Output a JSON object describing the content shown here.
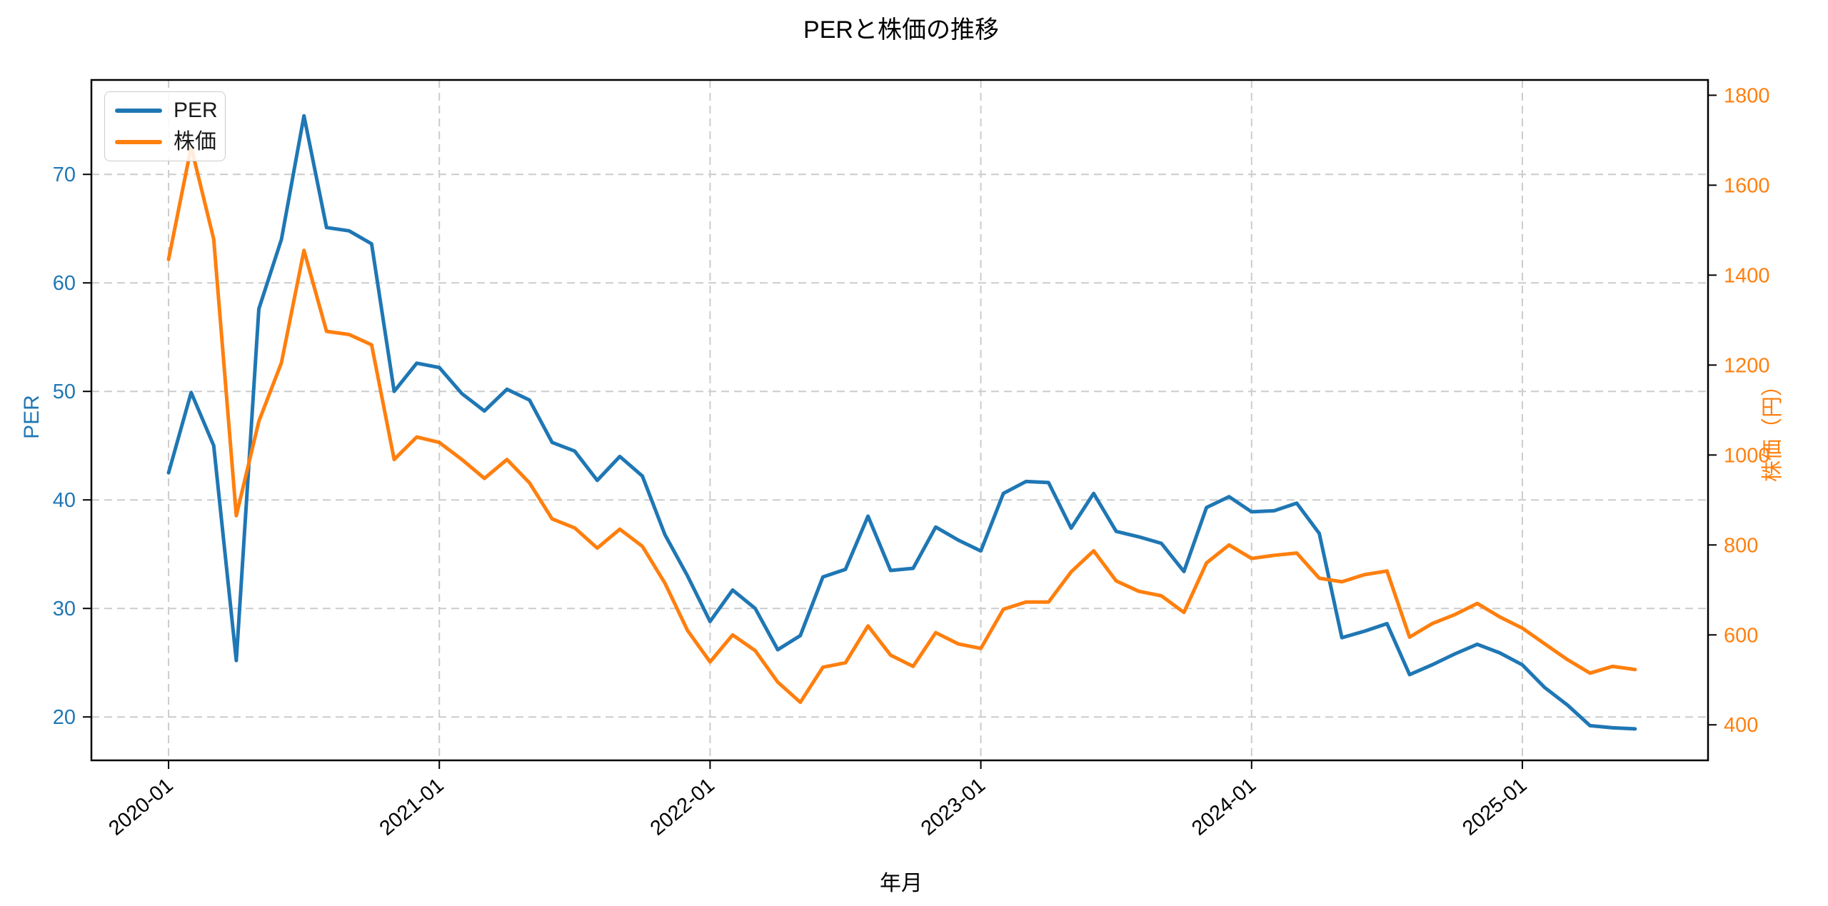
{
  "page": {
    "background": "#ffffff"
  },
  "chart_data": {
    "type": "line",
    "title": "PERと株価の推移",
    "xlabel": "年月",
    "ylabel_left": "PER",
    "ylabel_right": "株価（円）",
    "grid": true,
    "legend": {
      "position": "upper-left",
      "entries": [
        "PER",
        "株価"
      ]
    },
    "x_tick_labels": [
      "2020-01",
      "2021-01",
      "2022-01",
      "2023-01",
      "2024-01",
      "2025-01"
    ],
    "x_tick_indices": [
      0,
      12,
      24,
      36,
      48,
      60
    ],
    "x_index_range": [
      -3.42,
      68.23
    ],
    "n_points": 66,
    "ylim_left": [
      16.0,
      78.7
    ],
    "yticks_left": [
      20,
      30,
      40,
      50,
      60,
      70
    ],
    "ylim_right": [
      321,
      1834
    ],
    "yticks_right": [
      400,
      600,
      800,
      1000,
      1200,
      1400,
      1600,
      1800
    ],
    "colors": {
      "left_axis": "#1f77b4",
      "right_axis": "#ff7f0e",
      "grid": "#cccccc",
      "frame": "#000000"
    },
    "series": [
      {
        "name": "PER",
        "axis": "left",
        "color": "#1f77b4",
        "values": [
          42.5,
          49.9,
          45.0,
          25.2,
          57.6,
          64.0,
          75.4,
          65.1,
          64.8,
          63.6,
          50.0,
          52.6,
          52.2,
          49.8,
          48.2,
          50.2,
          49.2,
          45.3,
          44.5,
          41.8,
          44.0,
          42.2,
          36.8,
          33.0,
          28.8,
          31.7,
          30.0,
          26.2,
          27.5,
          32.9,
          33.6,
          38.5,
          33.5,
          33.7,
          37.5,
          36.3,
          35.3,
          40.6,
          41.7,
          41.6,
          37.4,
          40.6,
          37.1,
          36.6,
          36.0,
          33.4,
          39.3,
          40.3,
          38.9,
          39.0,
          39.7,
          36.9,
          27.3,
          27.9,
          28.6,
          23.9,
          24.8,
          25.8,
          26.7,
          25.9,
          24.8,
          22.7,
          21.1,
          19.2,
          19.0,
          18.9
        ]
      },
      {
        "name": "株価",
        "axis": "right",
        "color": "#ff7f0e",
        "values": [
          1435,
          1685,
          1480,
          865,
          1075,
          1205,
          1455,
          1275,
          1268,
          1245,
          990,
          1040,
          1028,
          990,
          948,
          990,
          938,
          858,
          838,
          793,
          835,
          797,
          715,
          610,
          540,
          600,
          565,
          495,
          450,
          528,
          538,
          620,
          555,
          530,
          605,
          580,
          570,
          657,
          673,
          673,
          740,
          787,
          720,
          697,
          687,
          650,
          760,
          800,
          770,
          777,
          782,
          726,
          718,
          734,
          742,
          595,
          625,
          645,
          670,
          640,
          615,
          580,
          545,
          515,
          530,
          523
        ]
      }
    ]
  }
}
